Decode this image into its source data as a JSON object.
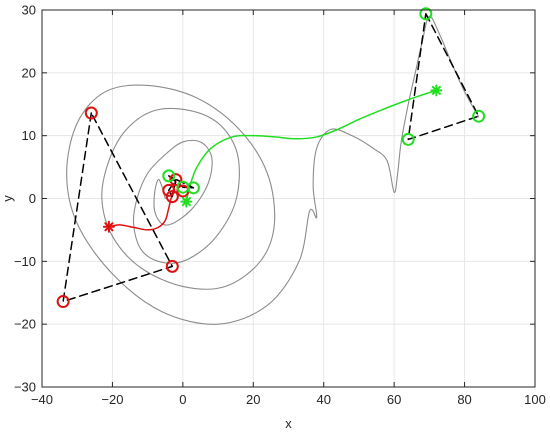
{
  "chart_data": {
    "type": "line",
    "xlabel": "x",
    "ylabel": "y",
    "xlim": [
      -40,
      100
    ],
    "ylim": [
      -30,
      30
    ],
    "xticks": [
      -40,
      -20,
      0,
      20,
      40,
      60,
      80,
      100
    ],
    "yticks": [
      -30,
      -20,
      -10,
      0,
      10,
      20,
      30
    ],
    "xticklabels": [
      "−40",
      "−20",
      "0",
      "20",
      "40",
      "60",
      "80",
      "100"
    ],
    "yticklabels": [
      "−30",
      "−20",
      "−10",
      "0",
      "10",
      "20",
      "30"
    ],
    "grid": true,
    "legend": "none",
    "colors": {
      "orbit": "#8c8c8c",
      "red_group": "#dd1111",
      "green_group": "#22dd22",
      "polygon": "#000000",
      "grid": "#e6e6e6"
    },
    "series": [
      {
        "role": "orbit",
        "style": "solid",
        "x": [
          -5,
          -6,
          -7,
          -8,
          -8,
          -6,
          -3,
          2,
          6,
          8,
          8,
          5,
          0,
          -5,
          -10,
          -13,
          -14,
          -12,
          -7,
          0,
          8,
          14,
          16,
          15,
          10,
          2,
          -8,
          -16,
          -21,
          -23,
          -20,
          -12,
          0,
          12,
          22,
          26,
          24,
          16,
          4,
          -10,
          -22,
          -30,
          -33,
          -30,
          -20,
          -6,
          10,
          24,
          33,
          36,
          38,
          37,
          38,
          42,
          48,
          54,
          58,
          60,
          61,
          62,
          64,
          66,
          68,
          70,
          73,
          76,
          80,
          84
        ],
        "y": [
          0,
          2,
          3,
          1,
          -2,
          -4,
          -4,
          -2,
          1,
          4,
          7,
          9,
          9,
          7,
          4,
          0,
          -4,
          -8,
          -10,
          -10,
          -7,
          -2,
          3,
          8,
          12,
          14,
          14,
          11,
          6,
          0,
          -6,
          -11,
          -14,
          -14,
          -10,
          -4,
          4,
          11,
          16,
          18,
          17,
          12,
          4,
          -4,
          -12,
          -18,
          -20,
          -17,
          -10,
          -2,
          -3,
          2,
          8,
          11,
          10,
          8,
          6,
          1,
          4,
          9,
          15,
          20,
          25,
          29,
          26,
          22,
          17,
          13
        ]
      },
      {
        "role": "red-path",
        "style": "solid",
        "x": [
          -21,
          -18,
          -14,
          -10,
          -7,
          -5,
          -4,
          -3,
          -2
        ],
        "y": [
          -4.5,
          -4.2,
          -4.6,
          -5,
          -4.6,
          -3.5,
          -1.5,
          0.8,
          2.6
        ]
      },
      {
        "role": "green-path",
        "style": "solid",
        "x": [
          1,
          2,
          4,
          8,
          14,
          20,
          26,
          32,
          38,
          44,
          50,
          56,
          62,
          67,
          72
        ],
        "y": [
          -0.5,
          2,
          5,
          8,
          9.8,
          10,
          9.8,
          9.5,
          9.8,
          11,
          12.6,
          14,
          15.3,
          16.3,
          17.2
        ]
      },
      {
        "role": "polygon-left",
        "style": "dashed",
        "x": [
          -26,
          -34,
          -3,
          -26
        ],
        "y": [
          13.6,
          -16.4,
          -10.8,
          13.6
        ]
      },
      {
        "role": "polygon-right",
        "style": "dashed",
        "x": [
          69,
          84,
          64,
          69
        ],
        "y": [
          29.4,
          13.1,
          9.4,
          29.4
        ]
      },
      {
        "role": "polygon-small-red",
        "style": "dashed",
        "x": [
          -4,
          -2,
          -3,
          -4
        ],
        "y": [
          1.3,
          3,
          0.3,
          1.3
        ]
      },
      {
        "role": "polygon-small-green",
        "style": "dashed",
        "x": [
          -4,
          0,
          3,
          -4
        ],
        "y": [
          3.6,
          1.8,
          1.7,
          3.6
        ]
      }
    ],
    "markers": [
      {
        "shape": "circle",
        "group": "red",
        "x": -26,
        "y": 13.6
      },
      {
        "shape": "circle",
        "group": "red",
        "x": -34,
        "y": -16.4
      },
      {
        "shape": "circle",
        "group": "red",
        "x": -3,
        "y": -10.8
      },
      {
        "shape": "circle",
        "group": "red",
        "x": -4,
        "y": 1.3
      },
      {
        "shape": "circle",
        "group": "red",
        "x": -2,
        "y": 3.0
      },
      {
        "shape": "circle",
        "group": "red",
        "x": -3,
        "y": 0.3
      },
      {
        "shape": "circle",
        "group": "red",
        "x": 0,
        "y": 1.2
      },
      {
        "shape": "circle",
        "group": "green",
        "x": 69,
        "y": 29.4
      },
      {
        "shape": "circle",
        "group": "green",
        "x": 84,
        "y": 13.1
      },
      {
        "shape": "circle",
        "group": "green",
        "x": 64,
        "y": 9.4
      },
      {
        "shape": "circle",
        "group": "green",
        "x": -4,
        "y": 3.6
      },
      {
        "shape": "circle",
        "group": "green",
        "x": 0,
        "y": 1.8
      },
      {
        "shape": "circle",
        "group": "green",
        "x": 3,
        "y": 1.7
      },
      {
        "shape": "star",
        "group": "red",
        "x": -21,
        "y": -4.5
      },
      {
        "shape": "star",
        "group": "green",
        "x": 72,
        "y": 17.2
      },
      {
        "shape": "star",
        "group": "green",
        "x": 1,
        "y": -0.5
      }
    ]
  }
}
